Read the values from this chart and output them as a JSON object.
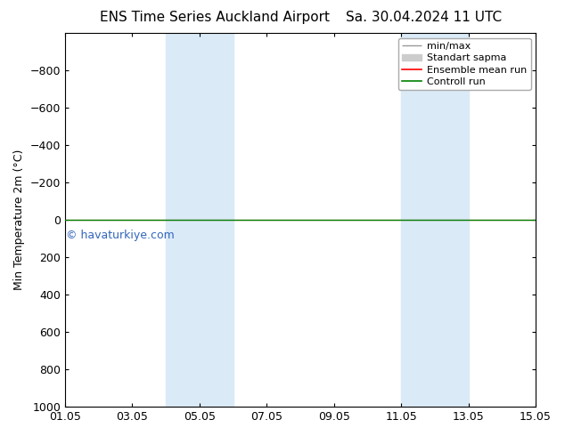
{
  "title": "ENS Time Series Auckland Airport",
  "title2": "Sa. 30.04.2024 11 UTC",
  "ylabel": "Min Temperature 2m (°C)",
  "watermark": "© havaturkiye.com",
  "xtick_labels": [
    "01.05",
    "03.05",
    "05.05",
    "07.05",
    "09.05",
    "11.05",
    "13.05",
    "15.05"
  ],
  "xtick_positions": [
    0,
    2,
    4,
    6,
    8,
    10,
    12,
    14
  ],
  "ylim_top": -1000,
  "ylim_bottom": 1000,
  "yticks": [
    -800,
    -600,
    -400,
    -200,
    0,
    200,
    400,
    600,
    800,
    1000
  ],
  "background_color": "#ffffff",
  "plot_bg_color": "#ffffff",
  "shaded_bands": [
    {
      "x_start": 3.0,
      "x_end": 5.0,
      "color": "#daeaf7"
    },
    {
      "x_start": 10.0,
      "x_end": 12.0,
      "color": "#daeaf7"
    }
  ],
  "ensemble_mean_color": "#ff0000",
  "control_run_color": "#008000",
  "minmax_color": "#999999",
  "std_fill_color": "#cccccc",
  "flat_line_y": 0,
  "legend_items": [
    "min/max",
    "Standart sapma",
    "Ensemble mean run",
    "Controll run"
  ],
  "font_size_title": 11,
  "font_size_axis": 9,
  "font_size_legend": 8,
  "font_size_watermark": 9,
  "watermark_color": "#3366bb"
}
